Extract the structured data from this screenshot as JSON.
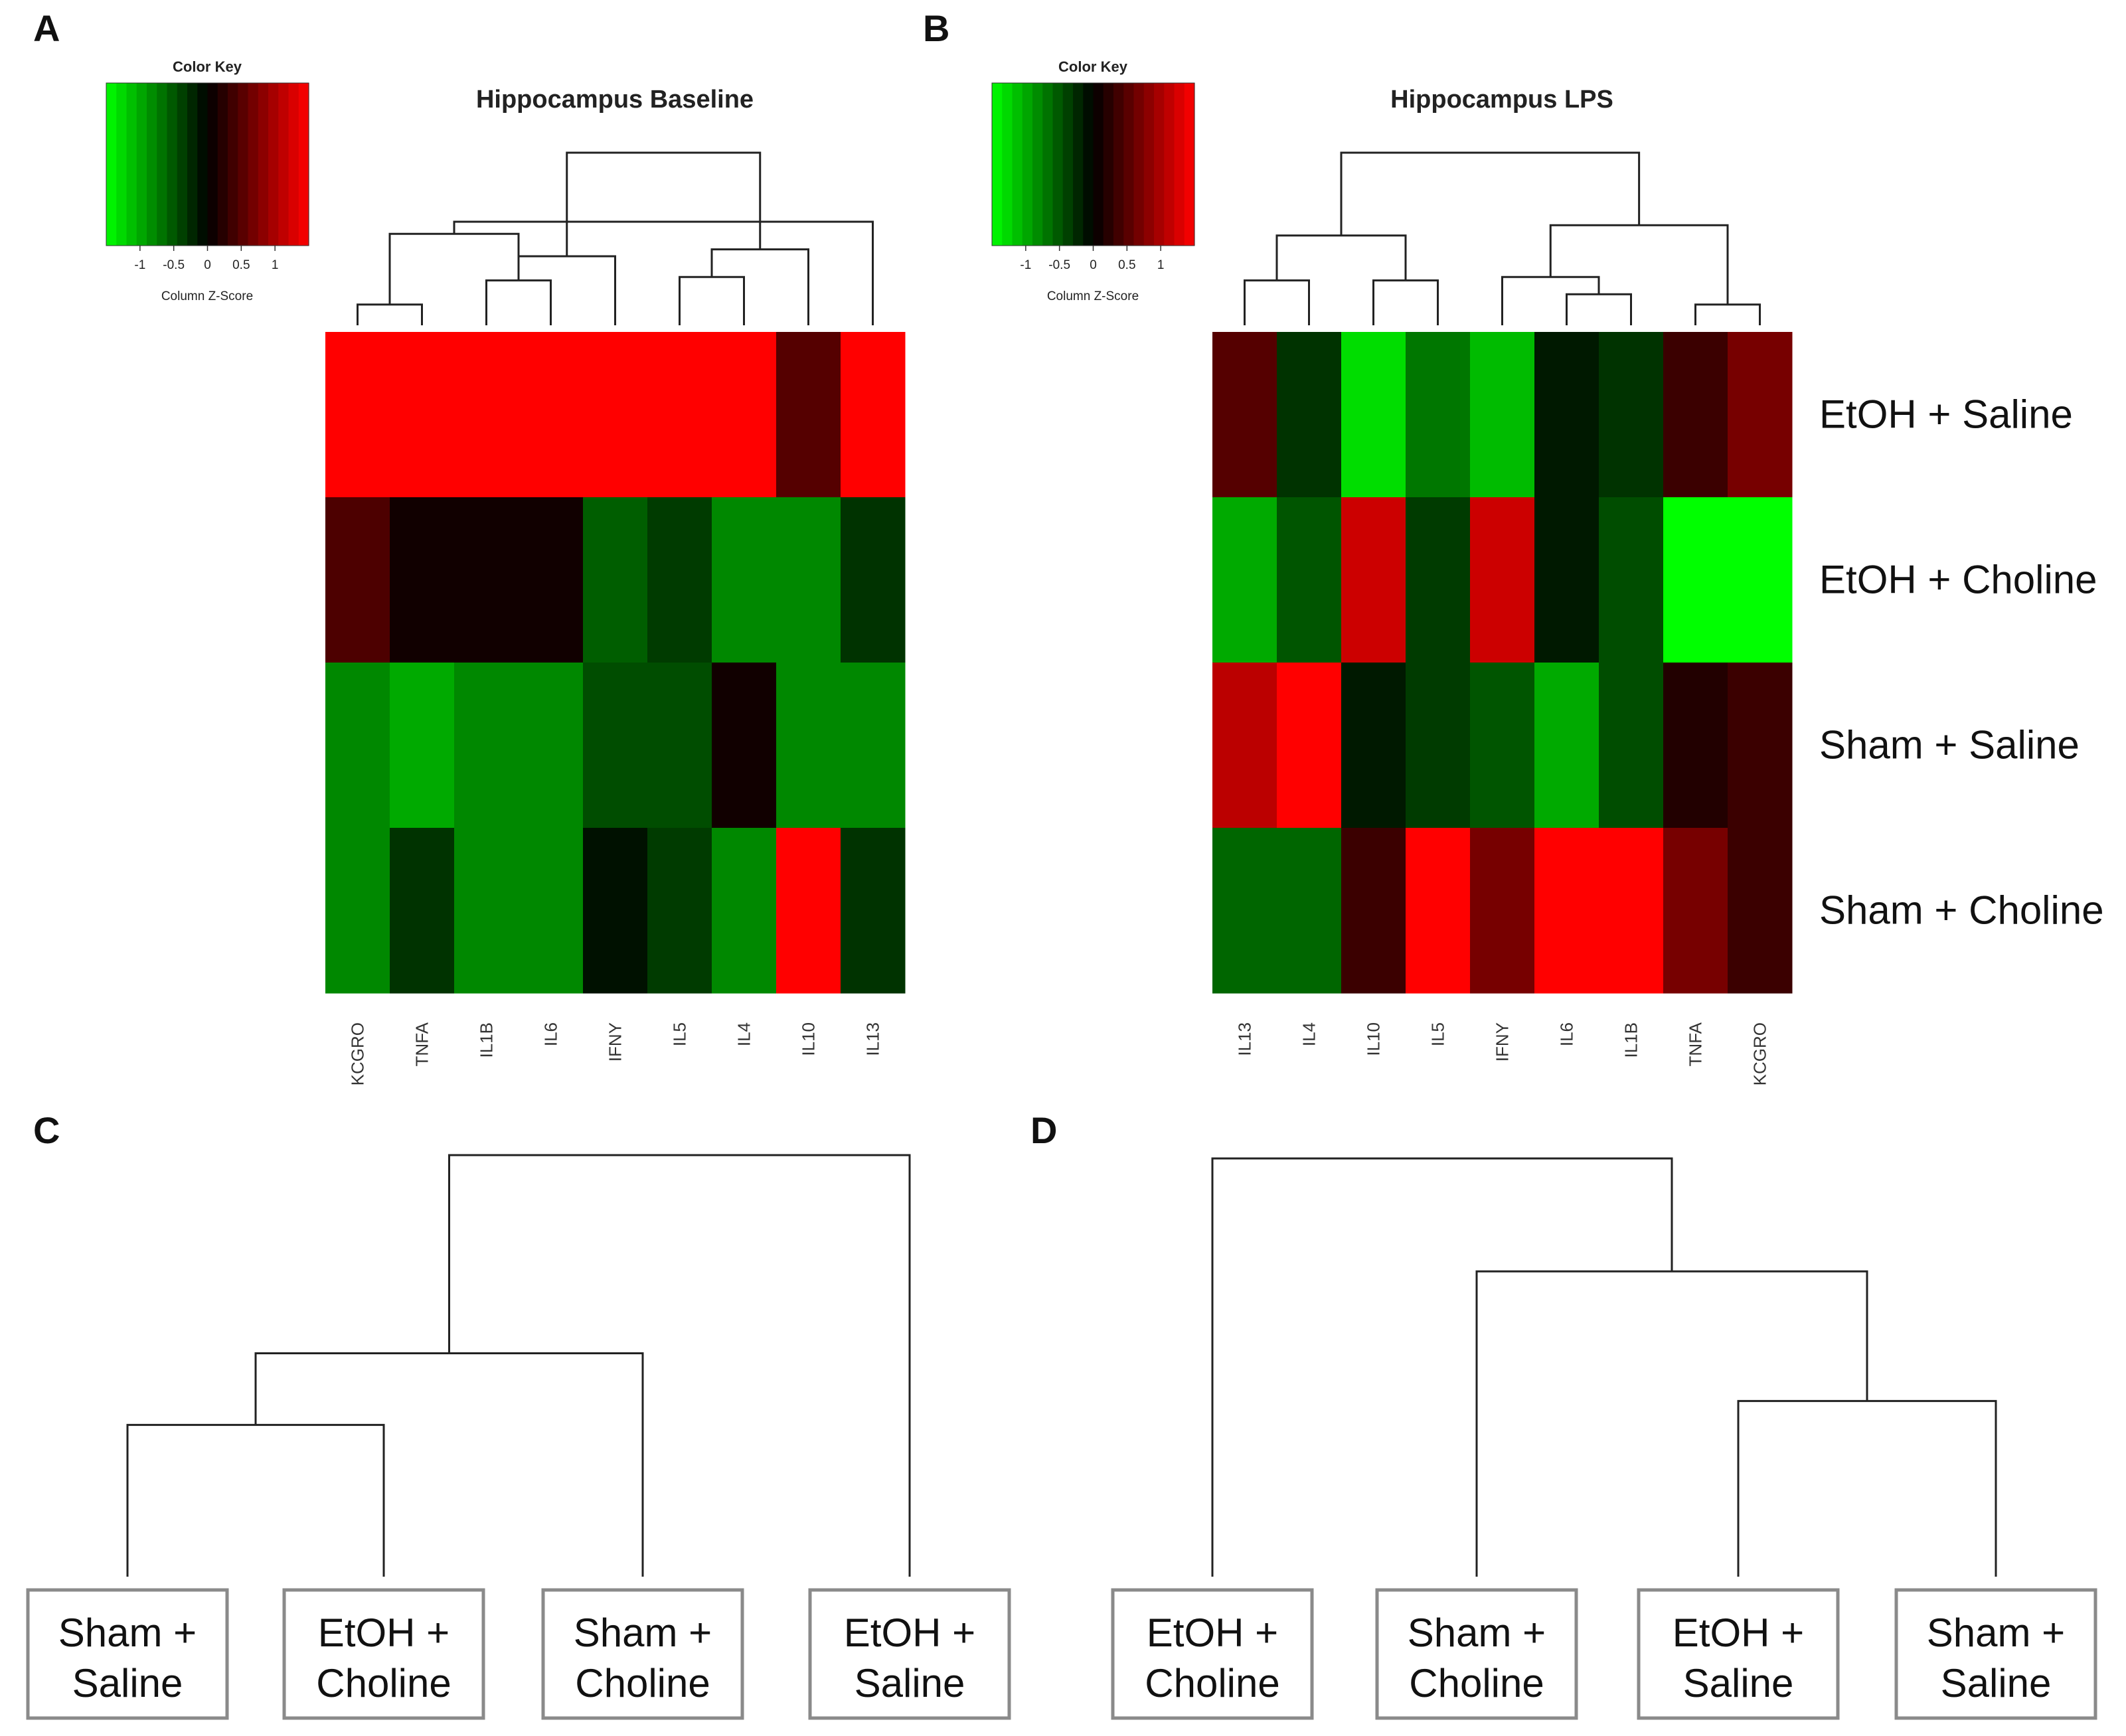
{
  "figure": {
    "panels": [
      {
        "letter": "A"
      },
      {
        "letter": "B"
      },
      {
        "letter": "C"
      },
      {
        "letter": "D"
      }
    ]
  },
  "chart_data": [
    {
      "type": "heatmap",
      "panel": "A",
      "title": "Hippocampus Baseline",
      "color_key": {
        "title": "Color Key",
        "xlabel": "Column Z-Score",
        "ticks": [
          "-1",
          "-0.5",
          "0",
          "0.5",
          "1"
        ],
        "low_color": "#00ff00",
        "mid_color": "#000000",
        "high_color": "#ff0000"
      },
      "columns": [
        "KCGRO",
        "TNFA",
        "IL1B",
        "IL6",
        "IFNY",
        "IL5",
        "IL4",
        "IL10",
        "IL13"
      ],
      "rows": [
        "EtOH + Saline",
        "EtOH + Choline",
        "Sham + Saline",
        "Sham + Choline"
      ],
      "values": [
        [
          1.5,
          1.5,
          1.5,
          1.5,
          1.5,
          1.5,
          1.5,
          0.5,
          1.5
        ],
        [
          0.45,
          0.1,
          0.1,
          0.1,
          -0.55,
          -0.35,
          -0.8,
          -0.8,
          -0.3
        ],
        [
          -0.8,
          -1.0,
          -0.8,
          -0.8,
          -0.45,
          -0.45,
          0.1,
          -0.8,
          -0.8
        ],
        [
          -0.8,
          -0.3,
          -0.8,
          -0.8,
          -0.1,
          -0.35,
          -0.8,
          1.5,
          -0.3
        ]
      ],
      "column_dendrogram": {
        "leaves": [
          "KCGRO",
          "TNFA",
          "IL1B",
          "IL6",
          "IFNY",
          "IL5",
          "IL4",
          "IL10",
          "IL13"
        ],
        "merges": [
          [
            0,
            1,
            0.12
          ],
          [
            2,
            3,
            0.26
          ],
          [
            5,
            6,
            0.28
          ],
          [
            10,
            4,
            0.4
          ],
          [
            9,
            10,
            0.53
          ],
          [
            11,
            7,
            0.44
          ],
          [
            13,
            8,
            0.6
          ],
          [
            12,
            14,
            1.0
          ]
        ]
      }
    },
    {
      "type": "heatmap",
      "panel": "B",
      "title": "Hippocampus LPS",
      "color_key": {
        "title": "Color Key",
        "xlabel": "Column Z-Score",
        "ticks": [
          "-1",
          "-0.5",
          "0",
          "0.5",
          "1"
        ],
        "low_color": "#00ff00",
        "mid_color": "#000000",
        "high_color": "#ff0000"
      },
      "columns": [
        "IL13",
        "IL4",
        "IL10",
        "IL5",
        "IFNY",
        "IL6",
        "IL1B",
        "TNFA",
        "KCGRO"
      ],
      "rows": [
        "EtOH + Saline",
        "EtOH + Choline",
        "Sham + Saline",
        "Sham + Choline"
      ],
      "values": [
        [
          0.5,
          -0.3,
          -1.3,
          -0.7,
          -1.1,
          -0.15,
          -0.3,
          0.35,
          0.7
        ],
        [
          -1.0,
          -0.5,
          1.2,
          -0.35,
          1.2,
          -0.15,
          -0.45,
          -1.5,
          -1.5
        ],
        [
          1.1,
          1.5,
          -0.15,
          -0.35,
          -0.5,
          -1.0,
          -0.45,
          0.2,
          0.35
        ],
        [
          -0.6,
          -0.6,
          0.35,
          1.5,
          0.7,
          1.5,
          1.5,
          0.7,
          0.35
        ]
      ],
      "column_dendrogram": {
        "leaves": [
          "IL13",
          "IL4",
          "IL10",
          "IL5",
          "IFNY",
          "IL6",
          "IL1B",
          "TNFA",
          "KCGRO"
        ],
        "merges": [
          [
            0,
            1,
            0.26
          ],
          [
            2,
            3,
            0.26
          ],
          [
            5,
            6,
            0.18
          ],
          [
            4,
            11,
            0.28
          ],
          [
            9,
            10,
            0.52
          ],
          [
            7,
            8,
            0.12
          ],
          [
            12,
            14,
            0.58
          ],
          [
            13,
            15,
            1.0
          ]
        ]
      }
    },
    {
      "type": "dendrogram",
      "panel": "C",
      "leaves": [
        "Sham +\nSaline",
        "EtOH +\nCholine",
        "Sham +\nCholine",
        "EtOH +\nSaline"
      ],
      "merges": [
        [
          0,
          1,
          0.36
        ],
        [
          4,
          2,
          0.53
        ],
        [
          5,
          3,
          1.0
        ]
      ]
    },
    {
      "type": "dendrogram",
      "panel": "D",
      "leaves": [
        "EtOH +\nCholine",
        "Sham +\nCholine",
        "EtOH +\nSaline",
        "Sham +\nSaline"
      ],
      "merges": [
        [
          2,
          3,
          0.42
        ],
        [
          1,
          4,
          0.73
        ],
        [
          0,
          5,
          1.0
        ]
      ]
    }
  ]
}
